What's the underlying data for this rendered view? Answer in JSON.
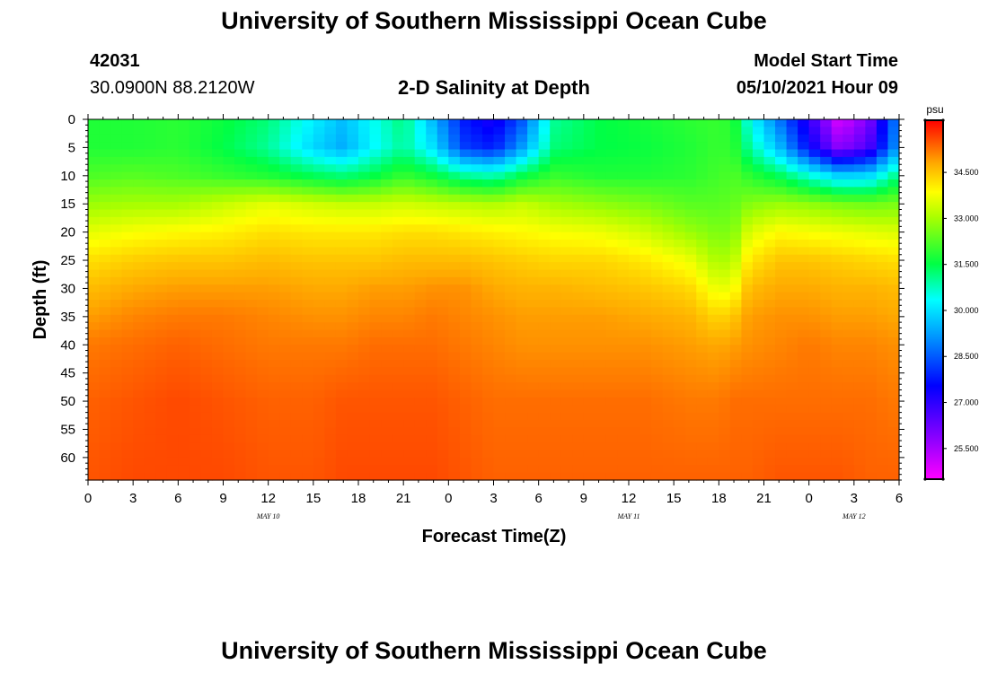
{
  "header": {
    "title_top": "University of Southern Mississippi Ocean Cube",
    "title_bottom": "University of Southern Mississippi Ocean Cube",
    "station_id": "42031",
    "station_coords": "30.0900N  88.2120W",
    "plot_title": "2-D Salinity at Depth",
    "model_start_label": "Model Start Time",
    "model_start_value": "05/10/2021 Hour 09"
  },
  "chart_data": {
    "type": "heatmap",
    "title": "2-D Salinity at Depth",
    "xlabel": "Forecast Time(Z)",
    "ylabel": "Depth (ft)",
    "x_tick_labels": [
      "0",
      "3",
      "6",
      "9",
      "12",
      "15",
      "18",
      "21",
      "0",
      "3",
      "6",
      "9",
      "12",
      "15",
      "18",
      "21",
      "0",
      "3",
      "6"
    ],
    "x_range_hours": [
      0,
      54
    ],
    "date_labels": [
      {
        "text": "MAY 10",
        "hour": 12
      },
      {
        "text": "MAY 11",
        "hour": 36
      },
      {
        "text": "MAY 12",
        "hour": 51
      }
    ],
    "y_tick_labels": [
      "0",
      "5",
      "10",
      "15",
      "20",
      "25",
      "30",
      "35",
      "40",
      "45",
      "50",
      "55",
      "60"
    ],
    "y_range_ft": [
      0,
      64
    ],
    "colorbar": {
      "unit": "psu",
      "range": [
        24.5,
        36.2
      ],
      "tick_labels": [
        "25.500",
        "27.000",
        "28.500",
        "30.000",
        "31.500",
        "33.000",
        "34.500"
      ],
      "tick_values": [
        25.5,
        27.0,
        28.5,
        30.0,
        31.5,
        33.0,
        34.5
      ]
    },
    "depth_profiles_ft": [
      0,
      5,
      10,
      15,
      20,
      25,
      30,
      35,
      40,
      50,
      64
    ],
    "columns": [
      {
        "hour": 0,
        "salinity": [
          31.8,
          31.8,
          32.2,
          32.9,
          33.6,
          34.2,
          34.6,
          34.9,
          35.2,
          35.4,
          35.5
        ]
      },
      {
        "hour": 3,
        "salinity": [
          31.8,
          31.8,
          32.3,
          33.0,
          33.8,
          34.4,
          34.8,
          35.1,
          35.3,
          35.5,
          35.6
        ]
      },
      {
        "hour": 6,
        "salinity": [
          31.9,
          31.9,
          32.2,
          33.0,
          33.9,
          34.5,
          34.9,
          35.2,
          35.4,
          35.6,
          35.6
        ]
      },
      {
        "hour": 9,
        "salinity": [
          31.6,
          31.5,
          32.0,
          33.3,
          34.0,
          34.5,
          34.9,
          35.2,
          35.3,
          35.5,
          35.6
        ]
      },
      {
        "hour": 12,
        "salinity": [
          31.2,
          31.0,
          31.8,
          33.6,
          34.2,
          34.6,
          34.9,
          35.1,
          35.2,
          35.4,
          35.5
        ]
      },
      {
        "hour": 15,
        "salinity": [
          30.2,
          29.9,
          31.4,
          33.4,
          34.1,
          34.5,
          34.8,
          35.0,
          35.2,
          35.4,
          35.5
        ]
      },
      {
        "hour": 17,
        "salinity": [
          29.6,
          29.4,
          31.2,
          33.3,
          34.1,
          34.5,
          34.8,
          35.0,
          35.2,
          35.5,
          35.6
        ]
      },
      {
        "hour": 19,
        "salinity": [
          30.4,
          30.3,
          31.5,
          33.3,
          34.1,
          34.5,
          34.9,
          35.1,
          35.3,
          35.5,
          35.6
        ]
      },
      {
        "hour": 21,
        "salinity": [
          31.2,
          31.0,
          32.0,
          33.4,
          34.2,
          34.6,
          34.9,
          35.1,
          35.3,
          35.5,
          35.6
        ]
      },
      {
        "hour": 23,
        "salinity": [
          29.5,
          30.0,
          31.6,
          33.3,
          34.2,
          34.6,
          35.0,
          35.2,
          35.3,
          35.5,
          35.6
        ]
      },
      {
        "hour": 25,
        "salinity": [
          27.8,
          28.2,
          31.0,
          33.2,
          34.1,
          34.6,
          35.0,
          35.1,
          35.2,
          35.4,
          35.5
        ]
      },
      {
        "hour": 27,
        "salinity": [
          27.2,
          27.8,
          30.8,
          33.1,
          34.0,
          34.5,
          34.8,
          35.0,
          35.1,
          35.3,
          35.4
        ]
      },
      {
        "hour": 29,
        "salinity": [
          28.5,
          29.3,
          31.5,
          33.3,
          33.9,
          34.4,
          34.7,
          34.9,
          35.0,
          35.3,
          35.4
        ]
      },
      {
        "hour": 31,
        "salinity": [
          31.0,
          31.2,
          32.0,
          33.0,
          33.8,
          34.3,
          34.7,
          34.9,
          35.0,
          35.3,
          35.4
        ]
      },
      {
        "hour": 34,
        "salinity": [
          31.5,
          31.5,
          31.8,
          32.8,
          33.7,
          34.3,
          34.6,
          34.9,
          35.0,
          35.3,
          35.4
        ]
      },
      {
        "hour": 37,
        "salinity": [
          31.7,
          31.6,
          31.8,
          32.6,
          33.4,
          34.1,
          34.5,
          34.8,
          35.0,
          35.3,
          35.4
        ]
      },
      {
        "hour": 40,
        "salinity": [
          31.9,
          31.8,
          31.9,
          32.3,
          32.9,
          33.7,
          34.3,
          34.7,
          34.9,
          35.2,
          35.4
        ]
      },
      {
        "hour": 42,
        "salinity": [
          32.0,
          32.0,
          32.1,
          32.3,
          32.6,
          33.0,
          33.6,
          34.3,
          34.8,
          35.2,
          35.4
        ]
      },
      {
        "hour": 43,
        "salinity": [
          31.8,
          31.9,
          32.2,
          32.4,
          32.7,
          33.2,
          33.8,
          34.5,
          34.9,
          35.3,
          35.4
        ]
      },
      {
        "hour": 44,
        "salinity": [
          30.5,
          31.0,
          31.9,
          32.7,
          33.5,
          34.1,
          34.6,
          34.9,
          35.0,
          35.3,
          35.4
        ]
      },
      {
        "hour": 46,
        "salinity": [
          28.8,
          29.6,
          31.4,
          32.9,
          33.9,
          34.5,
          34.8,
          35.0,
          35.1,
          35.3,
          35.5
        ]
      },
      {
        "hour": 48,
        "salinity": [
          27.0,
          27.6,
          30.6,
          32.8,
          33.8,
          34.5,
          34.8,
          35.0,
          35.2,
          35.3,
          35.5
        ]
      },
      {
        "hour": 50,
        "salinity": [
          24.9,
          25.8,
          29.8,
          32.6,
          33.7,
          34.4,
          34.7,
          34.9,
          35.1,
          35.3,
          35.5
        ]
      },
      {
        "hour": 52,
        "salinity": [
          26.0,
          26.6,
          29.9,
          32.5,
          33.6,
          34.3,
          34.7,
          34.9,
          35.1,
          35.3,
          35.4
        ]
      },
      {
        "hour": 54,
        "salinity": [
          29.2,
          29.4,
          31.2,
          32.6,
          33.5,
          34.2,
          34.6,
          34.8,
          35.0,
          35.2,
          35.4
        ]
      }
    ]
  }
}
